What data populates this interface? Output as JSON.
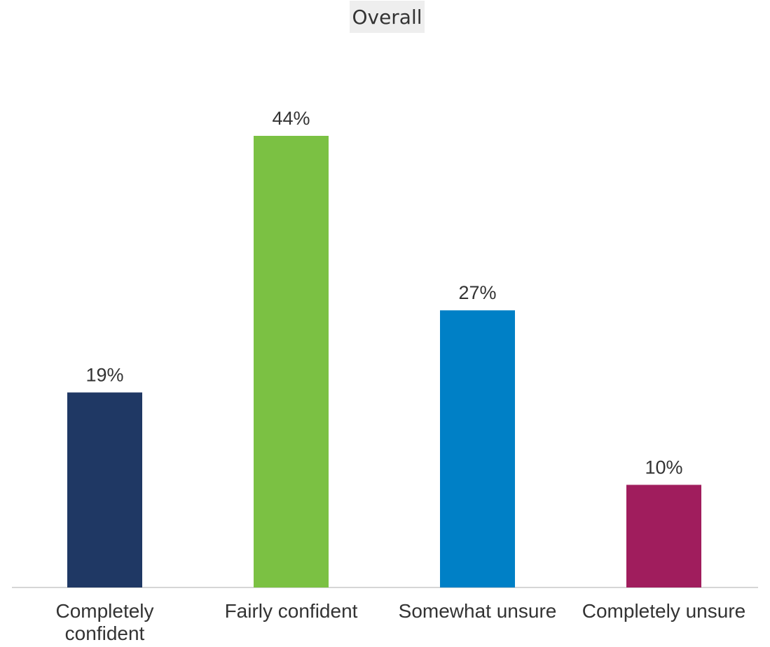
{
  "chart_data": {
    "type": "bar",
    "title": "Overall",
    "categories": [
      [
        "Completely",
        "confident"
      ],
      [
        "Fairly confident"
      ],
      [
        "Somewhat unsure"
      ],
      [
        "Completely unsure"
      ]
    ],
    "values": [
      19,
      44,
      27,
      10
    ],
    "data_labels": [
      "19%",
      "44%",
      "27%",
      "10%"
    ],
    "colors": [
      "#1f3864",
      "#7bc143",
      "#0080c6",
      "#a01d5d"
    ],
    "ylim": [
      0,
      44
    ],
    "grid": false,
    "legend": "none"
  }
}
